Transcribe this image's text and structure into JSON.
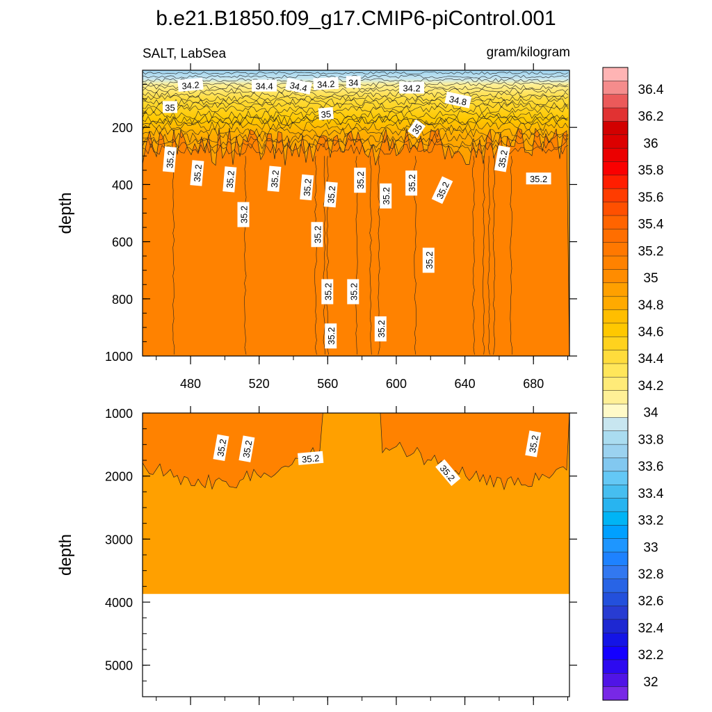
{
  "chart_data": {
    "type": "contour",
    "title": "b.e21.B1850.f09_g17.CMIP6-piControl.001",
    "left_subtitle": "SALT, LabSea",
    "right_subtitle": "gram/kilogram",
    "xlim": [
      452,
      701
    ],
    "x_ticks": [
      480,
      520,
      560,
      600,
      640,
      680
    ],
    "panels": [
      {
        "name": "upper",
        "ylabel": "depth",
        "ylim": [
          0,
          1000
        ],
        "y_ticks": [
          200,
          400,
          600,
          800,
          1000
        ],
        "contour_labels": [
          {
            "text": "34.2",
            "x": 480,
            "y": 52,
            "angle": -5
          },
          {
            "text": "34.4",
            "x": 523,
            "y": 55,
            "angle": 0
          },
          {
            "text": "34.4",
            "x": 543,
            "y": 57,
            "angle": 12
          },
          {
            "text": "34.2",
            "x": 559,
            "y": 48,
            "angle": -3
          },
          {
            "text": "34",
            "x": 575,
            "y": 42,
            "angle": 0
          },
          {
            "text": "34.2",
            "x": 609,
            "y": 62,
            "angle": 0
          },
          {
            "text": "34.8",
            "x": 636,
            "y": 105,
            "angle": 12
          },
          {
            "text": "35",
            "x": 468,
            "y": 130,
            "angle": 0
          },
          {
            "text": "35",
            "x": 559,
            "y": 153,
            "angle": -5
          },
          {
            "text": "35",
            "x": 612,
            "y": 205,
            "angle": -55
          },
          {
            "text": "35.2",
            "x": 468,
            "y": 312,
            "angle": -85
          },
          {
            "text": "35.2",
            "x": 484,
            "y": 360,
            "angle": -85
          },
          {
            "text": "35.2",
            "x": 503,
            "y": 382,
            "angle": -85
          },
          {
            "text": "35.2",
            "x": 529,
            "y": 380,
            "angle": -85
          },
          {
            "text": "35.2",
            "x": 548,
            "y": 410,
            "angle": -85
          },
          {
            "text": "35.2",
            "x": 562,
            "y": 435,
            "angle": -85
          },
          {
            "text": "35.2",
            "x": 579,
            "y": 385,
            "angle": -90
          },
          {
            "text": "35.2",
            "x": 594,
            "y": 440,
            "angle": -90
          },
          {
            "text": "35.2",
            "x": 609,
            "y": 395,
            "angle": -90
          },
          {
            "text": "35.2",
            "x": 627,
            "y": 420,
            "angle": -65
          },
          {
            "text": "35.2",
            "x": 662,
            "y": 310,
            "angle": -80
          },
          {
            "text": "35.2",
            "x": 683,
            "y": 380,
            "angle": 0
          },
          {
            "text": "35.2",
            "x": 511,
            "y": 505,
            "angle": -90
          },
          {
            "text": "35.2",
            "x": 554,
            "y": 575,
            "angle": -90
          },
          {
            "text": "35.2",
            "x": 619,
            "y": 665,
            "angle": -90
          },
          {
            "text": "35.2",
            "x": 560,
            "y": 775,
            "angle": -90
          },
          {
            "text": "35.2",
            "x": 575,
            "y": 775,
            "angle": -90
          },
          {
            "text": "35.2",
            "x": 562,
            "y": 930,
            "angle": -90
          },
          {
            "text": "35.2",
            "x": 591,
            "y": 905,
            "angle": -90
          }
        ]
      },
      {
        "name": "lower",
        "ylabel": "depth",
        "ylim": [
          1000,
          5500
        ],
        "y_ticks": [
          1000,
          2000,
          3000,
          4000,
          5000
        ],
        "seafloor_depth": 3870,
        "contour_labels": [
          {
            "text": "35.2",
            "x": 498,
            "y": 1550,
            "angle": -80
          },
          {
            "text": "35.2",
            "x": 513,
            "y": 1570,
            "angle": -80
          },
          {
            "text": "35.2",
            "x": 550,
            "y": 1720,
            "angle": -5
          },
          {
            "text": "35.2",
            "x": 630,
            "y": 1950,
            "angle": 50
          },
          {
            "text": "35.2",
            "x": 680,
            "y": 1490,
            "angle": -80
          }
        ]
      }
    ],
    "colorbar": {
      "labels": [
        "36.4",
        "36.2",
        "36",
        "35.8",
        "35.6",
        "35.4",
        "35.2",
        "35",
        "34.8",
        "34.6",
        "34.4",
        "34.2",
        "34",
        "33.8",
        "33.6",
        "33.4",
        "33.2",
        "33",
        "32.8",
        "32.6",
        "32.4",
        "32.2",
        "32"
      ],
      "colors": [
        "#FFB4B4",
        "#F58C8C",
        "#EB5A5A",
        "#E13232",
        "#D20000",
        "#DC0000",
        "#EB0000",
        "#FA0000",
        "#FF1E00",
        "#FF3C00",
        "#FF5000",
        "#FF6400",
        "#FF6E00",
        "#FF7800",
        "#FF8200",
        "#FF8C00",
        "#FFA000",
        "#FFAA00",
        "#FFBE00",
        "#FFC800",
        "#FFD21E",
        "#FFDC3C",
        "#FFE65A",
        "#FFEB78",
        "#FFF096",
        "#FFFAC8",
        "#C8E6F0",
        "#AADCF0",
        "#9BD2F0",
        "#82C8F0",
        "#64C8F5",
        "#46BEF0",
        "#28B4F0",
        "#00B4F5",
        "#00A0FF",
        "#1E96FF",
        "#1E82FF",
        "#3278F0",
        "#2864E6",
        "#2350DC",
        "#283CD2",
        "#1E28D2",
        "#1414E6",
        "#1400FF",
        "#2D0AF0",
        "#5014E6",
        "#7828E6"
      ]
    }
  }
}
